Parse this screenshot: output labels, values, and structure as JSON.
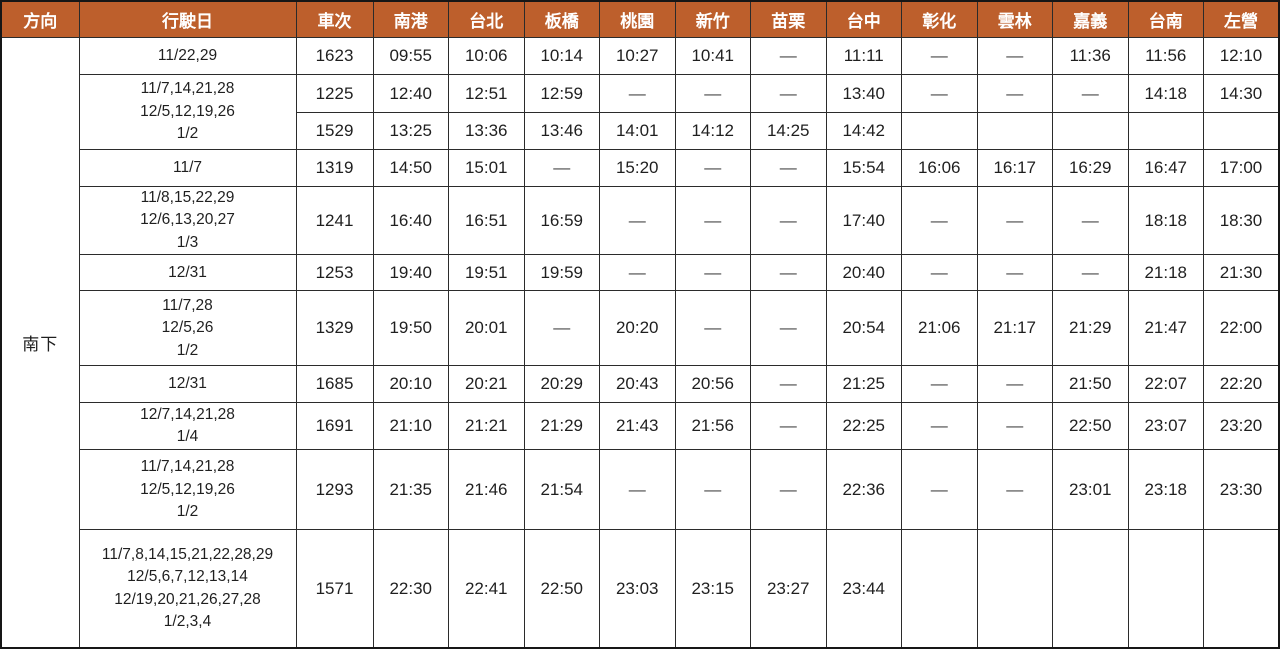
{
  "table": {
    "headers": [
      "方向",
      "行駛日",
      "車次",
      "南港",
      "台北",
      "板橋",
      "桃園",
      "新竹",
      "苗栗",
      "台中",
      "彰化",
      "雲林",
      "嘉義",
      "台南",
      "左營"
    ],
    "direction_label": "南下",
    "dash": "—",
    "colors": {
      "header_bg": "#BD5F2C",
      "header_text": "#FFFFFF",
      "border": "#2B2B2B",
      "time_text": "#1F1F1F"
    },
    "rows": [
      {
        "train": "1623",
        "days": [
          "11/22,29"
        ],
        "days_rowspan": 1,
        "times": [
          "09:55",
          "10:06",
          "10:14",
          "10:27",
          "10:41",
          "—",
          "11:11",
          "—",
          "—",
          "11:36",
          "11:56",
          "12:10"
        ]
      },
      {
        "train": "1225",
        "days": [
          "11/7,14,21,28",
          "12/5,12,19,26",
          "1/2"
        ],
        "days_rowspan": 2,
        "times": [
          "12:40",
          "12:51",
          "12:59",
          "—",
          "—",
          "—",
          "13:40",
          "—",
          "—",
          "—",
          "14:18",
          "14:30"
        ]
      },
      {
        "train": "1529",
        "days": null,
        "times": [
          "13:25",
          "13:36",
          "13:46",
          "14:01",
          "14:12",
          "14:25",
          "14:42",
          "",
          "",
          "",
          "",
          ""
        ]
      },
      {
        "train": "1319",
        "days": [
          "11/7"
        ],
        "days_rowspan": 1,
        "times": [
          "14:50",
          "15:01",
          "—",
          "15:20",
          "—",
          "—",
          "15:54",
          "16:06",
          "16:17",
          "16:29",
          "16:47",
          "17:00"
        ]
      },
      {
        "train": "1241",
        "days": [
          "11/8,15,22,29",
          "12/6,13,20,27",
          "1/3"
        ],
        "days_rowspan": 1,
        "times": [
          "16:40",
          "16:51",
          "16:59",
          "—",
          "—",
          "—",
          "17:40",
          "—",
          "—",
          "—",
          "18:18",
          "18:30"
        ]
      },
      {
        "train": "1253",
        "days": [
          "12/31"
        ],
        "days_rowspan": 1,
        "times": [
          "19:40",
          "19:51",
          "19:59",
          "—",
          "—",
          "—",
          "20:40",
          "—",
          "—",
          "—",
          "21:18",
          "21:30"
        ]
      },
      {
        "train": "1329",
        "days": [
          "11/7,28",
          "12/5,26",
          "1/2"
        ],
        "days_rowspan": 1,
        "times": [
          "19:50",
          "20:01",
          "—",
          "20:20",
          "—",
          "—",
          "20:54",
          "21:06",
          "21:17",
          "21:29",
          "21:47",
          "22:00"
        ]
      },
      {
        "train": "1685",
        "days": [
          "12/31"
        ],
        "days_rowspan": 1,
        "times": [
          "20:10",
          "20:21",
          "20:29",
          "20:43",
          "20:56",
          "—",
          "21:25",
          "—",
          "—",
          "21:50",
          "22:07",
          "22:20"
        ]
      },
      {
        "train": "1691",
        "days": [
          "12/7,14,21,28",
          "1/4"
        ],
        "days_rowspan": 1,
        "times": [
          "21:10",
          "21:21",
          "21:29",
          "21:43",
          "21:56",
          "—",
          "22:25",
          "—",
          "—",
          "22:50",
          "23:07",
          "23:20"
        ]
      },
      {
        "train": "1293",
        "days": [
          "11/7,14,21,28",
          "12/5,12,19,26",
          "1/2"
        ],
        "days_rowspan": 1,
        "times": [
          "21:35",
          "21:46",
          "21:54",
          "—",
          "—",
          "—",
          "22:36",
          "—",
          "—",
          "23:01",
          "23:18",
          "23:30"
        ]
      },
      {
        "train": "1571",
        "days": [
          "11/7,8,14,15,21,22,28,29",
          "12/5,6,7,12,13,14",
          "12/19,20,21,26,27,28",
          "1/2,3,4"
        ],
        "days_rowspan": 1,
        "times": [
          "22:30",
          "22:41",
          "22:50",
          "23:03",
          "23:15",
          "23:27",
          "23:44",
          "",
          "",
          "",
          "",
          ""
        ]
      }
    ]
  }
}
